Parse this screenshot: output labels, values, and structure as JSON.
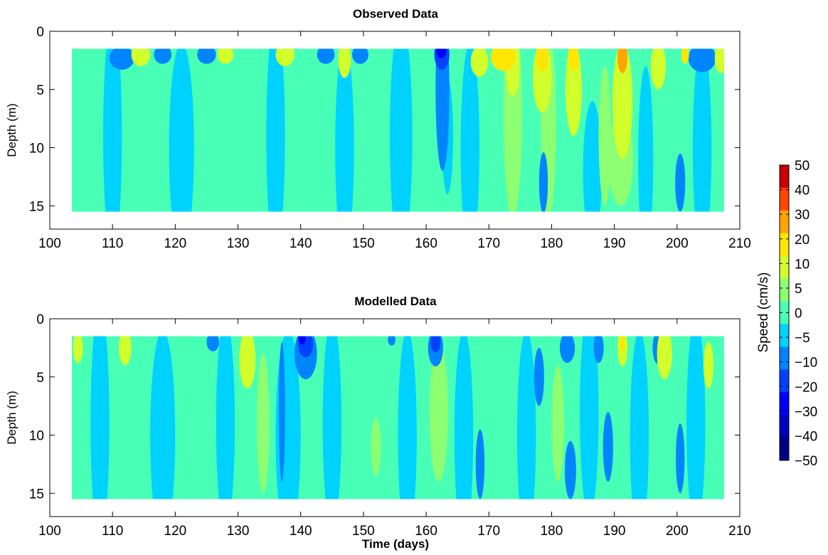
{
  "chart_data": [
    {
      "type": "heatmap",
      "title": "Observed Data",
      "xlabel": "",
      "ylabel": "Depth (m)",
      "xlim": [
        100,
        210
      ],
      "ylim": [
        0,
        17
      ],
      "y_reversed": true,
      "x_ticks": [
        100,
        110,
        120,
        130,
        140,
        150,
        160,
        170,
        180,
        190,
        200,
        210
      ],
      "y_ticks": [
        0,
        5,
        10,
        15
      ],
      "data_extent": {
        "x": [
          103.5,
          207.5
        ],
        "depth": [
          1.5,
          15.5
        ]
      },
      "background_value": 2,
      "features": [
        {
          "x": 162.6,
          "depth": 5,
          "dx": 1.1,
          "dd": 7,
          "value": -10
        },
        {
          "x": 162.5,
          "depth": 2,
          "dx": 1.2,
          "dd": 1.3,
          "value": -20
        },
        {
          "x": 162.4,
          "depth": 1.7,
          "dx": 0.8,
          "dd": 0.6,
          "value": -30
        },
        {
          "x": 163.4,
          "depth": 9,
          "dx": 0.9,
          "dd": 5,
          "value": -5
        },
        {
          "x": 111.5,
          "depth": 2.3,
          "dx": 2,
          "dd": 1,
          "value": -10
        },
        {
          "x": 118,
          "depth": 2,
          "dx": 1.4,
          "dd": 0.8,
          "value": -10
        },
        {
          "x": 125,
          "depth": 2,
          "dx": 1.5,
          "dd": 0.8,
          "value": -10
        },
        {
          "x": 144,
          "depth": 2,
          "dx": 1.4,
          "dd": 0.8,
          "value": -10
        },
        {
          "x": 149.5,
          "depth": 2,
          "dx": 1.3,
          "dd": 0.8,
          "value": -10
        },
        {
          "x": 204,
          "depth": 2.3,
          "dx": 2.2,
          "dd": 1.2,
          "value": -10
        },
        {
          "x": 178.7,
          "depth": 13,
          "dx": 0.7,
          "dd": 2.6,
          "value": -10
        },
        {
          "x": 200.5,
          "depth": 13,
          "dx": 0.8,
          "dd": 2.5,
          "value": -10
        },
        {
          "x": 168.5,
          "depth": 2.6,
          "dx": 1.4,
          "dd": 1.3,
          "value": 10
        },
        {
          "x": 172.3,
          "depth": 2.2,
          "dx": 2,
          "dd": 1.2,
          "value": 20
        },
        {
          "x": 173.8,
          "depth": 7,
          "dx": 1.5,
          "dd": 9,
          "value": 5
        },
        {
          "x": 173.8,
          "depth": 3,
          "dx": 1.1,
          "dd": 2.6,
          "value": 10
        },
        {
          "x": 178.5,
          "depth": 2.2,
          "dx": 1,
          "dd": 1.3,
          "value": 20
        },
        {
          "x": 178.5,
          "depth": 4,
          "dx": 1.5,
          "dd": 3,
          "value": 10
        },
        {
          "x": 183.5,
          "depth": 2.2,
          "dx": 0.9,
          "dd": 1.2,
          "value": 20
        },
        {
          "x": 183.5,
          "depth": 5,
          "dx": 1.3,
          "dd": 4,
          "value": 10
        },
        {
          "x": 191.3,
          "depth": 2.2,
          "dx": 0.8,
          "dd": 1.4,
          "value": 30
        },
        {
          "x": 191.3,
          "depth": 6,
          "dx": 1.6,
          "dd": 5,
          "value": 10
        },
        {
          "x": 191,
          "depth": 11,
          "dx": 2,
          "dd": 4,
          "value": 5
        },
        {
          "x": 197,
          "depth": 3,
          "dx": 1.2,
          "dd": 2,
          "value": 10
        },
        {
          "x": 201.3,
          "depth": 2,
          "dx": 0.6,
          "dd": 0.8,
          "value": 20
        },
        {
          "x": 207,
          "depth": 2.3,
          "dx": 1,
          "dd": 1.3,
          "value": 10
        },
        {
          "x": 137.5,
          "depth": 2,
          "dx": 1.5,
          "dd": 1,
          "value": 10
        },
        {
          "x": 114.5,
          "depth": 2,
          "dx": 1.5,
          "dd": 1,
          "value": 10
        },
        {
          "x": 128,
          "depth": 2,
          "dx": 1.3,
          "dd": 0.8,
          "value": 10
        },
        {
          "x": 147,
          "depth": 2.5,
          "dx": 1,
          "dd": 1.5,
          "value": 10
        },
        {
          "x": 110,
          "depth": 9,
          "dx": 1.5,
          "dd": 10,
          "value": -5
        },
        {
          "x": 121,
          "depth": 10,
          "dx": 2,
          "dd": 9,
          "value": -5
        },
        {
          "x": 136,
          "depth": 9,
          "dx": 1.5,
          "dd": 10,
          "value": -5
        },
        {
          "x": 147,
          "depth": 10,
          "dx": 1.5,
          "dd": 9,
          "value": -5
        },
        {
          "x": 156,
          "depth": 9,
          "dx": 1.8,
          "dd": 10,
          "value": -5
        },
        {
          "x": 167,
          "depth": 10,
          "dx": 1.5,
          "dd": 9,
          "value": -5
        },
        {
          "x": 186.5,
          "depth": 12,
          "dx": 1.5,
          "dd": 6,
          "value": -5
        },
        {
          "x": 195,
          "depth": 11,
          "dx": 1.2,
          "dd": 8,
          "value": -5
        },
        {
          "x": 204,
          "depth": 10,
          "dx": 1.5,
          "dd": 9,
          "value": -5
        },
        {
          "x": 179.5,
          "depth": 8,
          "dx": 1.2,
          "dd": 8,
          "value": 5
        },
        {
          "x": 188.5,
          "depth": 9,
          "dx": 1,
          "dd": 6,
          "value": 5
        }
      ]
    },
    {
      "type": "heatmap",
      "title": "Modelled Data",
      "xlabel": "Time (days)",
      "ylabel": "Depth (m)",
      "xlim": [
        100,
        210
      ],
      "ylim": [
        0,
        17
      ],
      "y_reversed": true,
      "x_ticks": [
        100,
        110,
        120,
        130,
        140,
        150,
        160,
        170,
        180,
        190,
        200,
        210
      ],
      "y_ticks": [
        0,
        5,
        10,
        15
      ],
      "data_extent": {
        "x": [
          103.5,
          207.5
        ],
        "depth": [
          1.5,
          15.5
        ]
      },
      "background_value": 2,
      "features": [
        {
          "x": 140.8,
          "depth": 3,
          "dx": 1.8,
          "dd": 2.2,
          "value": -10
        },
        {
          "x": 140.8,
          "depth": 2.2,
          "dx": 1.2,
          "dd": 1.1,
          "value": -20
        },
        {
          "x": 140.2,
          "depth": 1.7,
          "dx": 0.6,
          "dd": 0.5,
          "value": -30
        },
        {
          "x": 161.5,
          "depth": 2.5,
          "dx": 1.2,
          "dd": 1.6,
          "value": -10
        },
        {
          "x": 161.5,
          "depth": 2,
          "dx": 0.8,
          "dd": 0.9,
          "value": -20
        },
        {
          "x": 168.6,
          "depth": 12.5,
          "dx": 0.7,
          "dd": 3,
          "value": -10
        },
        {
          "x": 182.5,
          "depth": 2.5,
          "dx": 1.2,
          "dd": 1.3,
          "value": -10
        },
        {
          "x": 178,
          "depth": 5,
          "dx": 0.8,
          "dd": 2.5,
          "value": -10
        },
        {
          "x": 187.5,
          "depth": 2.5,
          "dx": 0.8,
          "dd": 1.3,
          "value": -10
        },
        {
          "x": 189,
          "depth": 11,
          "dx": 0.8,
          "dd": 3,
          "value": -10
        },
        {
          "x": 200.5,
          "depth": 12,
          "dx": 0.7,
          "dd": 3,
          "value": -10
        },
        {
          "x": 197,
          "depth": 2.5,
          "dx": 0.9,
          "dd": 1.4,
          "value": -10
        },
        {
          "x": 183,
          "depth": 13,
          "dx": 0.9,
          "dd": 2.5,
          "value": -10
        },
        {
          "x": 137,
          "depth": 8,
          "dx": 0.5,
          "dd": 6,
          "value": -10
        },
        {
          "x": 126,
          "depth": 2,
          "dx": 1,
          "dd": 0.8,
          "value": -10
        },
        {
          "x": 154.5,
          "depth": 1.8,
          "dx": 0.6,
          "dd": 0.5,
          "value": -10
        },
        {
          "x": 131.5,
          "depth": 3.5,
          "dx": 1.3,
          "dd": 2.5,
          "value": 10
        },
        {
          "x": 112,
          "depth": 2.5,
          "dx": 1,
          "dd": 1.5,
          "value": 10
        },
        {
          "x": 104.5,
          "depth": 2.5,
          "dx": 0.8,
          "dd": 1.3,
          "value": 10
        },
        {
          "x": 191.3,
          "depth": 2.5,
          "dx": 0.8,
          "dd": 1.6,
          "value": 10
        },
        {
          "x": 191.3,
          "depth": 2,
          "dx": 0.4,
          "dd": 0.8,
          "value": 20
        },
        {
          "x": 198,
          "depth": 3,
          "dx": 1.2,
          "dd": 2.2,
          "value": 10
        },
        {
          "x": 205,
          "depth": 4,
          "dx": 0.8,
          "dd": 2,
          "value": 10
        },
        {
          "x": 152,
          "depth": 11,
          "dx": 0.8,
          "dd": 2.5,
          "value": 5
        },
        {
          "x": 162,
          "depth": 8,
          "dx": 1.5,
          "dd": 6,
          "value": 5
        },
        {
          "x": 134,
          "depth": 9,
          "dx": 1,
          "dd": 6,
          "value": 5
        },
        {
          "x": 181,
          "depth": 9,
          "dx": 1,
          "dd": 5,
          "value": 5
        },
        {
          "x": 108,
          "depth": 9,
          "dx": 1.5,
          "dd": 10,
          "value": -5
        },
        {
          "x": 118,
          "depth": 10,
          "dx": 2,
          "dd": 9,
          "value": -5
        },
        {
          "x": 128,
          "depth": 9,
          "dx": 1.5,
          "dd": 9,
          "value": -5
        },
        {
          "x": 138,
          "depth": 10,
          "dx": 2,
          "dd": 9,
          "value": -5
        },
        {
          "x": 145,
          "depth": 9,
          "dx": 1.5,
          "dd": 9,
          "value": -5
        },
        {
          "x": 157,
          "depth": 10,
          "dx": 1.5,
          "dd": 9,
          "value": -5
        },
        {
          "x": 166,
          "depth": 10,
          "dx": 1.5,
          "dd": 9,
          "value": -5
        },
        {
          "x": 176,
          "depth": 10,
          "dx": 1.5,
          "dd": 9,
          "value": -5
        },
        {
          "x": 186,
          "depth": 8,
          "dx": 1.5,
          "dd": 9,
          "value": -5
        },
        {
          "x": 194,
          "depth": 10,
          "dx": 1.5,
          "dd": 9,
          "value": -5
        },
        {
          "x": 203,
          "depth": 9,
          "dx": 1.5,
          "dd": 9,
          "value": -5
        }
      ]
    }
  ],
  "colorbar": {
    "label": "Speed (cm/s)",
    "levels": [
      -50,
      -40,
      -30,
      -20,
      -10,
      -5,
      0,
      5,
      10,
      20,
      30,
      40,
      50
    ],
    "tick_labels": [
      "50",
      "40",
      "30",
      "20",
      "10",
      "5",
      "0",
      "−5",
      "−10",
      "−20",
      "−30",
      "−40",
      "−50"
    ],
    "colors": [
      "#000085",
      "#0000c4",
      "#0000ff",
      "#0042ff",
      "#0084ff",
      "#00d2ff",
      "#48ffb6",
      "#8cff72",
      "#d2ff2c",
      "#ffe600",
      "#ffa600",
      "#ff4600",
      "#c80000"
    ]
  }
}
